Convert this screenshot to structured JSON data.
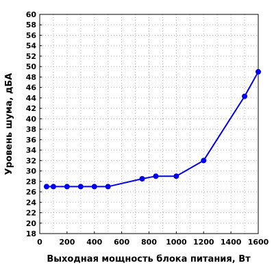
{
  "chart_data": {
    "type": "line",
    "title": "",
    "xlabel": "Выходная мощность блока питания, Вт",
    "ylabel": "Уровень шума, дБА",
    "xlim": [
      0,
      1600
    ],
    "ylim": [
      18,
      60
    ],
    "xticks": [
      0,
      200,
      400,
      600,
      800,
      1000,
      1200,
      1400,
      1600
    ],
    "yticks": [
      18,
      20,
      22,
      24,
      26,
      28,
      30,
      32,
      34,
      36,
      38,
      40,
      42,
      44,
      46,
      48,
      50,
      52,
      54,
      56,
      58,
      60
    ],
    "grid": true,
    "legend": "none",
    "series": [
      {
        "color": "#0000ee",
        "x": [
          50,
          100,
          200,
          300,
          400,
          500,
          750,
          850,
          1000,
          1200,
          1500,
          1600
        ],
        "y": [
          27,
          27,
          27,
          27,
          27,
          27,
          28.5,
          29,
          29,
          32,
          44.3,
          49
        ]
      }
    ]
  }
}
